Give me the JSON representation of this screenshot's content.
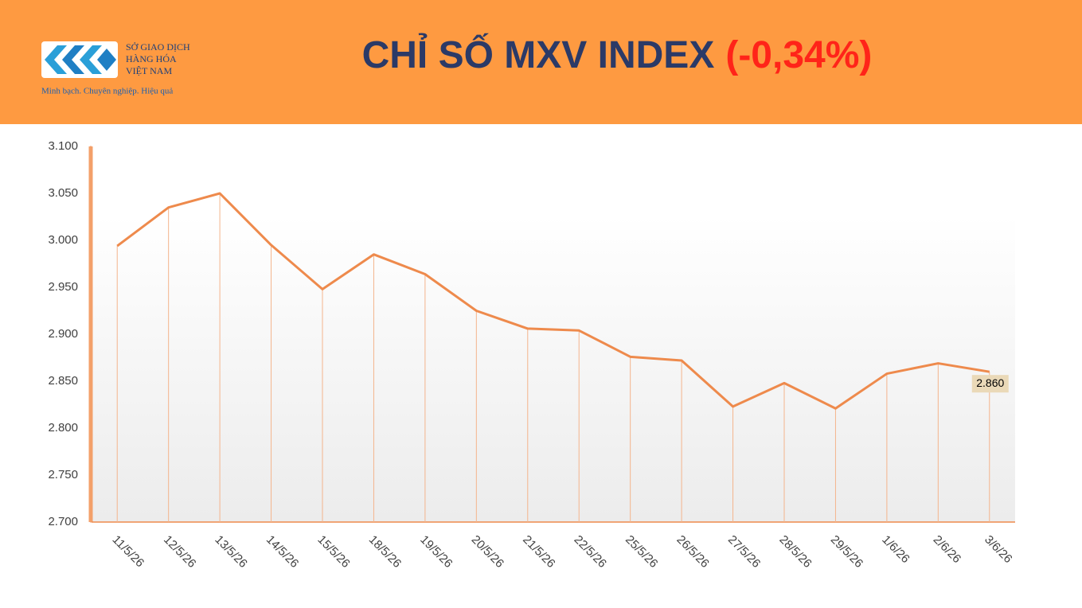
{
  "header": {
    "logo_lines": [
      "SỞ GIAO DỊCH",
      "HÀNG HÓA",
      "VIỆT NAM"
    ],
    "tagline": "Minh bạch. Chuyên nghiệp. Hiệu quả"
  },
  "chart_data": {
    "type": "line",
    "title": "CHỈ SỐ MXV INDEX",
    "subtitle": "(-0,34%)",
    "categories": [
      "11/5/26",
      "12/5/26",
      "13/5/26",
      "14/5/26",
      "15/5/26",
      "18/5/26",
      "19/5/26",
      "20/5/26",
      "21/5/26",
      "22/5/26",
      "25/5/26",
      "26/5/26",
      "27/5/26",
      "28/5/26",
      "29/5/26",
      "1/6/26",
      "2/6/26",
      "3/6/26"
    ],
    "values": [
      2994,
      3035,
      3050,
      2995,
      2948,
      2985,
      2964,
      2925,
      2906,
      2904,
      2876,
      2872,
      2823,
      2848,
      2821,
      2858,
      2869,
      2860
    ],
    "value_labels": [
      null,
      null,
      null,
      null,
      null,
      null,
      null,
      null,
      null,
      null,
      null,
      null,
      null,
      null,
      null,
      null,
      null,
      "2.860"
    ],
    "color": "#ee8a4c",
    "ylim": [
      2700,
      3100
    ],
    "yticks": [
      {
        "value": 2700,
        "label": "2.700"
      },
      {
        "value": 2750,
        "label": "2.750"
      },
      {
        "value": 2800,
        "label": "2.800"
      },
      {
        "value": 2850,
        "label": "2.850"
      },
      {
        "value": 2900,
        "label": "2.900"
      },
      {
        "value": 2950,
        "label": "2.950"
      },
      {
        "value": 3000,
        "label": "3.000"
      },
      {
        "value": 3050,
        "label": "3.050"
      },
      {
        "value": 3100,
        "label": "3.100"
      }
    ],
    "drop_lines": true
  }
}
